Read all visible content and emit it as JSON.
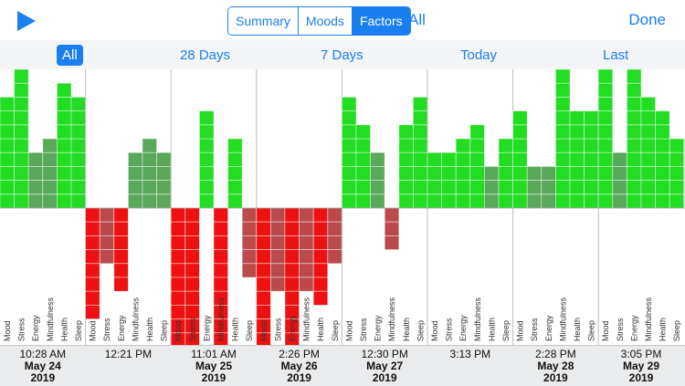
{
  "toolbar": {
    "play_icon": "play-icon",
    "segments": [
      {
        "label": "Summary",
        "active": false
      },
      {
        "label": "Moods",
        "active": false
      },
      {
        "label": "Factors",
        "active": true
      }
    ],
    "filter_label": "All",
    "done_label": "Done"
  },
  "ranges": [
    {
      "label": "All",
      "active": true
    },
    {
      "label": "28 Days",
      "active": false
    },
    {
      "label": "7 Days",
      "active": false
    },
    {
      "label": "Today",
      "active": false
    },
    {
      "label": "Last",
      "active": false
    }
  ],
  "colors": {
    "bright_green": "#22dd22",
    "dull_green": "#5aa95a",
    "bright_red": "#ee1111",
    "dull_red": "#bb4a4a",
    "accent": "#1a7ff0"
  },
  "chart_data": {
    "type": "bar",
    "factors": [
      "Mood",
      "Stress",
      "Energy",
      "Mindfulness",
      "Health",
      "Sleep"
    ],
    "entries": [
      {
        "time": "10:28 AM",
        "date": "May 24",
        "year": "2019",
        "values": [
          {
            "f": "Mood",
            "v": 8,
            "s": "bright"
          },
          {
            "f": "Stress",
            "v": 10,
            "s": "bright"
          },
          {
            "f": "Energy",
            "v": 4,
            "s": "dull"
          },
          {
            "f": "Mindfulness",
            "v": 5,
            "s": "dull"
          },
          {
            "f": "Health",
            "v": 9,
            "s": "bright"
          },
          {
            "f": "Sleep",
            "v": 8,
            "s": "bright"
          }
        ]
      },
      {
        "time": "12:21 PM",
        "date": "",
        "year": "",
        "values": [
          {
            "f": "Mood",
            "v": -8,
            "s": "bright"
          },
          {
            "f": "Stress",
            "v": -4,
            "s": "dull"
          },
          {
            "f": "Energy",
            "v": -6,
            "s": "bright"
          },
          {
            "f": "Mindfulness",
            "v": 4,
            "s": "dull"
          },
          {
            "f": "Health",
            "v": 5,
            "s": "dull"
          },
          {
            "f": "Sleep",
            "v": 4,
            "s": "dull"
          }
        ]
      },
      {
        "time": "11:01 AM",
        "date": "May 25",
        "year": "2019",
        "values": [
          {
            "f": "Mood",
            "v": -10,
            "s": "bright"
          },
          {
            "f": "Stress",
            "v": -10,
            "s": "bright"
          },
          {
            "f": "Energy",
            "v": 7,
            "s": "bright"
          },
          {
            "f": "Mindfulness",
            "v": -10,
            "s": "bright"
          },
          {
            "f": "Health",
            "v": 5,
            "s": "bright"
          },
          {
            "f": "Sleep",
            "v": -5,
            "s": "dull"
          }
        ]
      },
      {
        "time": "2:26 PM",
        "date": "May 26",
        "year": "2019",
        "values": [
          {
            "f": "Mood",
            "v": -10,
            "s": "bright"
          },
          {
            "f": "Stress",
            "v": -6,
            "s": "dull"
          },
          {
            "f": "Energy",
            "v": -10,
            "s": "bright"
          },
          {
            "f": "Mindfulness",
            "v": -6,
            "s": "dull"
          },
          {
            "f": "Health",
            "v": -7,
            "s": "bright"
          },
          {
            "f": "Sleep",
            "v": -4,
            "s": "dull"
          }
        ]
      },
      {
        "time": "12:30 PM",
        "date": "May 27",
        "year": "2019",
        "values": [
          {
            "f": "Mood",
            "v": 8,
            "s": "bright"
          },
          {
            "f": "Stress",
            "v": 6,
            "s": "bright"
          },
          {
            "f": "Energy",
            "v": 4,
            "s": "dull"
          },
          {
            "f": "Mindfulness",
            "v": -3,
            "s": "dull"
          },
          {
            "f": "Health",
            "v": 6,
            "s": "bright"
          },
          {
            "f": "Sleep",
            "v": 8,
            "s": "bright"
          }
        ]
      },
      {
        "time": "3:13 PM",
        "date": "",
        "year": "",
        "values": [
          {
            "f": "Mood",
            "v": 4,
            "s": "bright"
          },
          {
            "f": "Stress",
            "v": 4,
            "s": "bright"
          },
          {
            "f": "Energy",
            "v": 5,
            "s": "bright"
          },
          {
            "f": "Mindfulness",
            "v": 6,
            "s": "bright"
          },
          {
            "f": "Health",
            "v": 3,
            "s": "dull"
          },
          {
            "f": "Sleep",
            "v": 5,
            "s": "bright"
          }
        ]
      },
      {
        "time": "2:28 PM",
        "date": "May 28",
        "year": "2019",
        "values": [
          {
            "f": "Mood",
            "v": 7,
            "s": "bright"
          },
          {
            "f": "Stress",
            "v": 3,
            "s": "dull"
          },
          {
            "f": "Energy",
            "v": 3,
            "s": "dull"
          },
          {
            "f": "Mindfulness",
            "v": 10,
            "s": "bright"
          },
          {
            "f": "Health",
            "v": 7,
            "s": "bright"
          },
          {
            "f": "Sleep",
            "v": 7,
            "s": "bright"
          }
        ]
      },
      {
        "time": "3:05 PM",
        "date": "May 29",
        "year": "2019",
        "values": [
          {
            "f": "Mood",
            "v": 10,
            "s": "bright"
          },
          {
            "f": "Stress",
            "v": 4,
            "s": "dull"
          },
          {
            "f": "Energy",
            "v": 10,
            "s": "bright"
          },
          {
            "f": "Mindfulness",
            "v": 8,
            "s": "bright"
          },
          {
            "f": "Health",
            "v": 7,
            "s": "bright"
          },
          {
            "f": "Sleep",
            "v": 5,
            "s": "bright"
          }
        ]
      }
    ],
    "ylim": [
      -10,
      10
    ]
  }
}
